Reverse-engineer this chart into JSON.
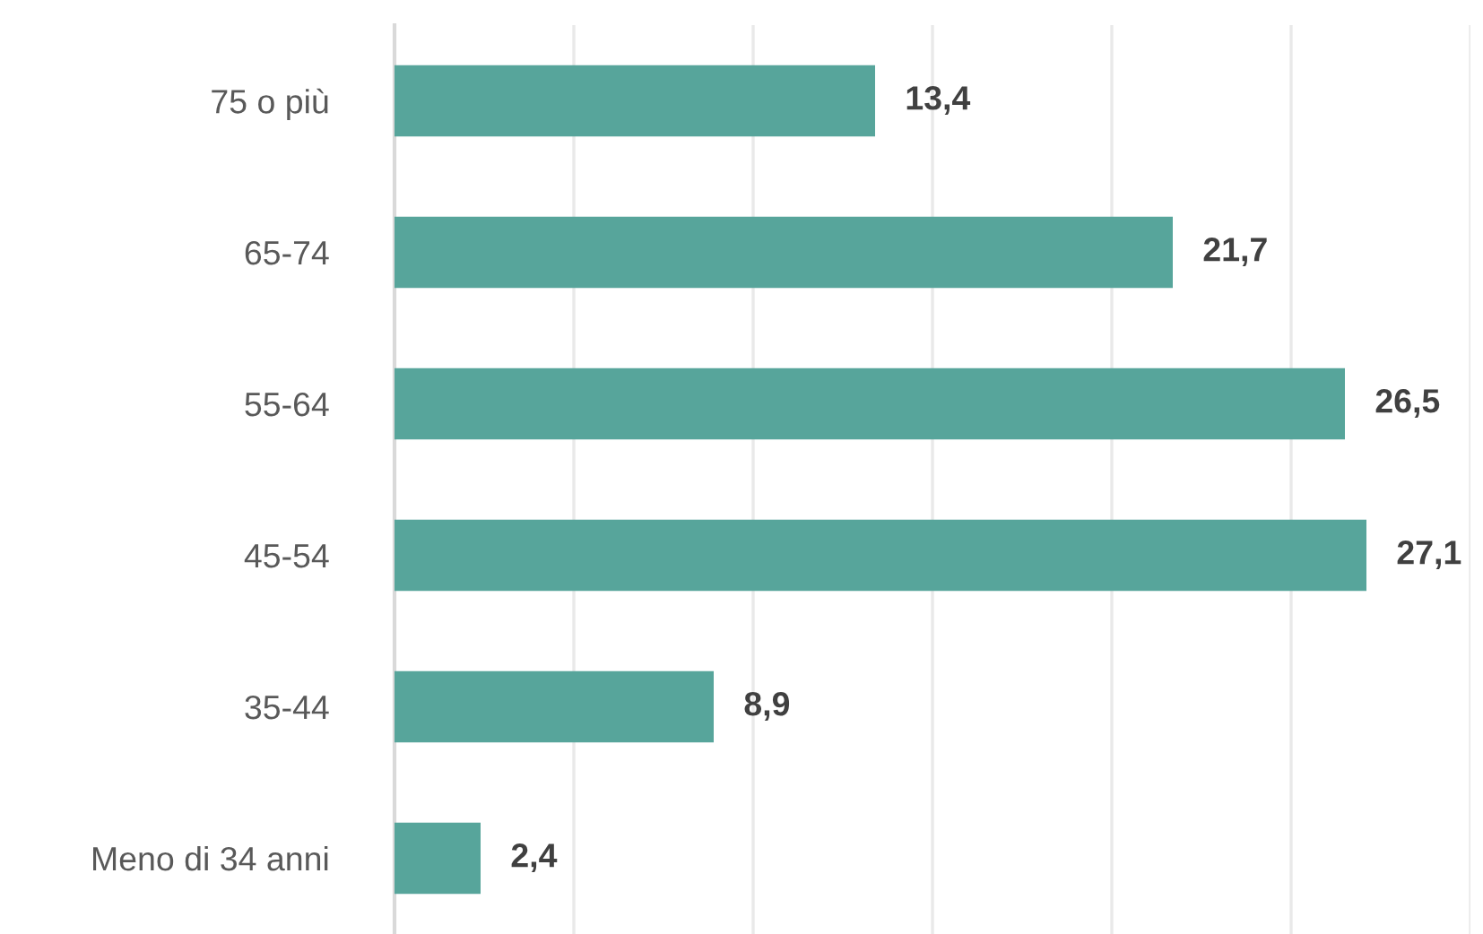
{
  "chart_data": {
    "type": "bar",
    "orientation": "horizontal",
    "categories": [
      "75 o più",
      "65-74",
      "55-64",
      "45-54",
      "35-44",
      "Meno di 34 anni"
    ],
    "values": [
      13.4,
      21.7,
      26.5,
      27.1,
      8.9,
      2.4
    ],
    "value_labels": [
      "13,4",
      "21,7",
      "26,5",
      "27,1",
      "8,9",
      "2,4"
    ],
    "color": "#57a59b",
    "xlim": [
      0,
      30
    ],
    "xticks": [
      {
        "value": 0,
        "label": null
      },
      {
        "value": 5,
        "label": null
      },
      {
        "value": 10,
        "label": null
      },
      {
        "value": 15,
        "label": null
      },
      {
        "value": 20,
        "label": null
      },
      {
        "value": 25,
        "label": null
      },
      {
        "value": 30,
        "label": null
      }
    ],
    "grid": "x",
    "tick_labels": "y",
    "legend": false
  }
}
